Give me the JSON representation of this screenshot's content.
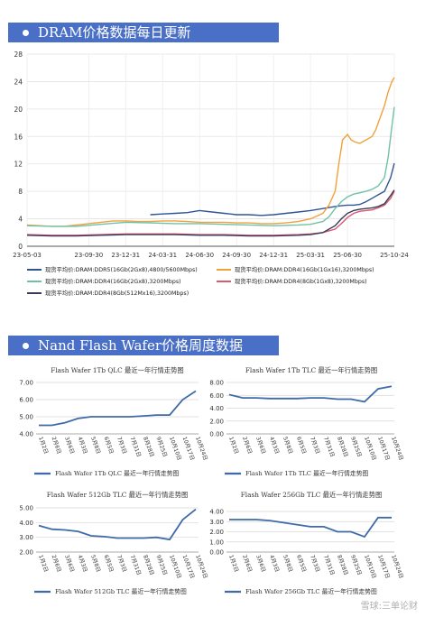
{
  "banners": {
    "dram": "DRAM价格数据每日更新",
    "nand": "Nand Flash Wafer价格周度数据"
  },
  "watermark": "雪球:三单论财",
  "chart_data": [
    {
      "type": "line",
      "title": "",
      "ylim": [
        0,
        28
      ],
      "yticks": [
        "0",
        "4",
        "8",
        "12",
        "16",
        "20",
        "24",
        "28"
      ],
      "xtick_labels": [
        "23-05-03",
        "23-09-30",
        "23-12-31",
        "24-03-31",
        "24-06-30",
        "24-09-30",
        "24-12-31",
        "25-03-31",
        "25-06-30",
        "25-10-24"
      ],
      "xtick_pos": [
        0,
        5,
        8,
        11,
        14,
        17,
        20,
        23,
        26,
        29.8
      ],
      "series": [
        {
          "name": "现货平均价:DRAM:DDR5(16Gb(2Gx8),4800/5600Mbps)",
          "color": "#2f5597",
          "x": [
            10,
            11,
            12,
            13,
            14,
            15,
            16,
            17,
            18,
            19,
            20,
            21,
            22,
            23,
            24,
            25,
            25.5,
            26,
            26.5,
            27,
            27.5,
            28,
            28.5,
            29,
            29.5,
            29.8
          ],
          "y": [
            4.6,
            4.7,
            4.8,
            4.9,
            5.2,
            5.0,
            4.8,
            4.6,
            4.6,
            4.5,
            4.6,
            4.8,
            5.0,
            5.2,
            5.5,
            5.8,
            5.9,
            6.0,
            6.0,
            6.1,
            6.5,
            7.0,
            7.5,
            8.0,
            10.0,
            12.1
          ]
        },
        {
          "name": "现货平均价:DRAM:DDR4(16Gb(1Gx16),3200Mbps)",
          "color": "#f0a13a",
          "x": [
            0,
            1,
            2,
            3,
            4,
            5,
            6,
            7,
            8,
            9,
            10,
            11,
            12,
            13,
            14,
            15,
            16,
            17,
            18,
            19,
            20,
            21,
            22,
            23,
            24,
            24.5,
            25,
            25.3,
            25.6,
            26,
            26.3,
            26.6,
            27,
            27.5,
            28,
            28.3,
            28.6,
            29,
            29.3,
            29.6,
            29.8
          ],
          "y": [
            3.1,
            3.0,
            2.9,
            2.9,
            3.1,
            3.3,
            3.5,
            3.7,
            3.7,
            3.6,
            3.6,
            3.7,
            3.7,
            3.6,
            3.5,
            3.5,
            3.5,
            3.4,
            3.4,
            3.3,
            3.3,
            3.4,
            3.6,
            4.0,
            4.8,
            6.0,
            8.0,
            12.0,
            15.5,
            16.3,
            15.5,
            15.2,
            15.0,
            15.5,
            16.0,
            17.0,
            18.5,
            20.5,
            22.5,
            24.0,
            24.6
          ]
        },
        {
          "name": "现货平均价:DRAM:DDR4(16Gb(2Gx8),3200Mbps)",
          "color": "#70c1a7",
          "x": [
            0,
            2,
            4,
            6,
            8,
            10,
            12,
            14,
            16,
            18,
            20,
            22,
            23,
            24,
            24.5,
            25,
            25.5,
            26,
            26.5,
            27,
            27.5,
            28,
            28.5,
            29,
            29.3,
            29.6,
            29.8
          ],
          "y": [
            3.0,
            2.9,
            2.9,
            3.2,
            3.5,
            3.4,
            3.3,
            3.3,
            3.2,
            3.1,
            3.0,
            3.1,
            3.2,
            3.6,
            4.3,
            5.5,
            6.5,
            7.2,
            7.6,
            7.8,
            8.0,
            8.3,
            8.8,
            10.0,
            13.0,
            17.5,
            20.3
          ]
        },
        {
          "name": "现货平均价:DRAM:DDR4(8Gb(1Gx8),3200Mbps)",
          "color": "#d9596e",
          "x": [
            0,
            2,
            4,
            6,
            8,
            10,
            12,
            14,
            16,
            18,
            20,
            22,
            23,
            24,
            25,
            25.5,
            26,
            26.5,
            27,
            27.5,
            28,
            28.5,
            29,
            29.5,
            29.8
          ],
          "y": [
            1.7,
            1.6,
            1.6,
            1.7,
            1.8,
            1.8,
            1.8,
            1.7,
            1.7,
            1.6,
            1.6,
            1.7,
            1.8,
            2.0,
            2.5,
            3.3,
            4.2,
            4.8,
            5.1,
            5.2,
            5.3,
            5.6,
            6.0,
            7.0,
            8.0
          ]
        },
        {
          "name": "现货平均价:DRAM:DDR4(8Gb(512Mx16),3200Mbps)",
          "color": "#3a3a5c",
          "x": [
            0,
            2,
            4,
            6,
            8,
            10,
            12,
            14,
            16,
            18,
            20,
            22,
            23,
            24,
            25,
            25.5,
            26,
            26.5,
            27,
            27.5,
            28,
            28.5,
            29,
            29.5,
            29.8
          ],
          "y": [
            1.6,
            1.5,
            1.5,
            1.6,
            1.7,
            1.7,
            1.7,
            1.6,
            1.6,
            1.5,
            1.5,
            1.6,
            1.7,
            2.0,
            3.0,
            4.0,
            4.8,
            5.2,
            5.4,
            5.5,
            5.6,
            5.8,
            6.2,
            7.4,
            8.2
          ]
        }
      ]
    },
    {
      "type": "line",
      "title": "Flash Wafer 1Tb QLC 最近一年行情走势图",
      "ylim": [
        4.0,
        7.0
      ],
      "yticks": [
        "4.00",
        "5.00",
        "6.00",
        "7.00"
      ],
      "categories": [
        "1月2日",
        "2月6日",
        "3月6日",
        "4月3日",
        "5月8日",
        "6月5日",
        "7月3日",
        "7月31日",
        "8月28日",
        "9月25日",
        "10月10日",
        "10月17日",
        "10月24日"
      ],
      "series": [
        {
          "name": "Flash Wafer 1Tb QLC 最近一年行情走势图",
          "color": "#3f6aa8",
          "values": [
            4.5,
            4.5,
            4.65,
            4.9,
            5.0,
            5.0,
            5.0,
            5.0,
            5.05,
            5.1,
            5.1,
            6.0,
            6.5
          ]
        }
      ]
    },
    {
      "type": "line",
      "title": "Flash Wafer 1Tb TLC 最近一年行情走势图",
      "ylim": [
        0.0,
        8.0
      ],
      "yticks": [
        "0.00",
        "2.00",
        "4.00",
        "6.00",
        "8.00"
      ],
      "categories": [
        "1月2日",
        "2月6日",
        "3月6日",
        "4月3日",
        "5月8日",
        "6月5日",
        "7月3日",
        "7月31日",
        "8月28日",
        "9月25日",
        "10月10日",
        "10月17日",
        "10月24日"
      ],
      "series": [
        {
          "name": "Flash Wafer 1Tb TLC 最近一年行情走势图",
          "color": "#3f6aa8",
          "values": [
            6.1,
            5.6,
            5.6,
            5.5,
            5.5,
            5.5,
            5.6,
            5.6,
            5.4,
            5.4,
            5.0,
            7.0,
            7.4
          ]
        }
      ]
    },
    {
      "type": "line",
      "title": "Flash Wafer 512Gb TLC 最近一年行情走势图",
      "ylim": [
        2.0,
        5.0
      ],
      "yticks": [
        "2.00",
        "3.00",
        "4.00",
        "5.00"
      ],
      "categories": [
        "1月2日",
        "2月6日",
        "3月6日",
        "4月3日",
        "5月8日",
        "6月5日",
        "7月3日",
        "7月31日",
        "8月28日",
        "9月25日",
        "10月10日",
        "10月17日",
        "10月24日"
      ],
      "series": [
        {
          "name": "Flash Wafer 512Gb TLC 最近一年行情走势图",
          "color": "#3f6aa8",
          "values": [
            3.8,
            3.55,
            3.5,
            3.4,
            3.1,
            3.05,
            2.95,
            2.95,
            2.95,
            3.0,
            2.85,
            4.2,
            4.9
          ]
        }
      ]
    },
    {
      "type": "line",
      "title": "Flash Wafer 256Gb TLC 最近一年行情走势图",
      "ylim": [
        0.0,
        4.0
      ],
      "yticks": [
        "0.00",
        "1.00",
        "2.00",
        "3.00",
        "4.00"
      ],
      "categories": [
        "1月2日",
        "2月6日",
        "3月6日",
        "4月3日",
        "5月8日",
        "6月5日",
        "7月3日",
        "7月31日",
        "8月28日",
        "9月25日",
        "10月10日",
        "10月17日",
        "10月24日"
      ],
      "series": [
        {
          "name": "Flash Wafer 256Gb TLC 最近一年行情走势图",
          "color": "#3f6aa8",
          "values": [
            3.2,
            3.2,
            3.2,
            3.1,
            2.9,
            2.7,
            2.5,
            2.5,
            2.0,
            2.0,
            1.5,
            3.4,
            3.4
          ]
        }
      ]
    }
  ]
}
